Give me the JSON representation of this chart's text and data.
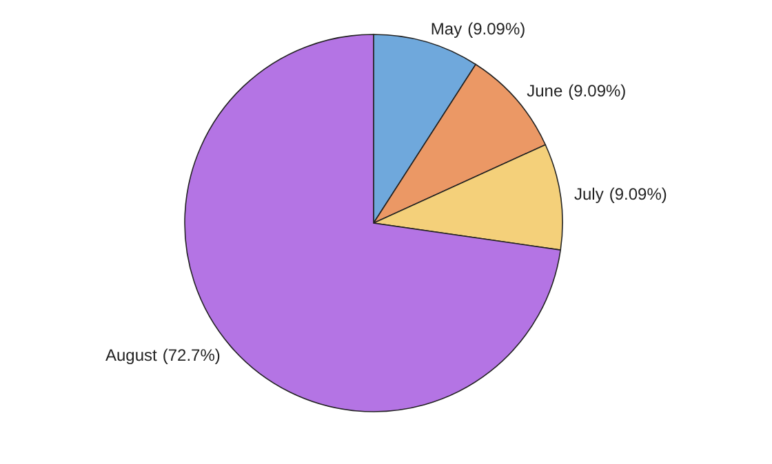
{
  "chart_data": {
    "type": "pie",
    "categories": [
      "May",
      "June",
      "July",
      "August"
    ],
    "values": [
      9.09,
      9.09,
      9.09,
      72.7
    ],
    "colors": [
      "#6fa8dc",
      "#eb9865",
      "#f4d07a",
      "#b474e4"
    ],
    "value_labels": [
      "(9.09%)",
      "(9.09%)",
      "(9.09%)",
      "(72.7%)"
    ],
    "legend": false
  }
}
